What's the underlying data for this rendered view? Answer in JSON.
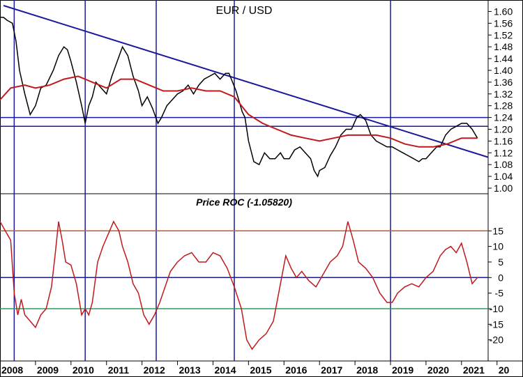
{
  "chart_data": [
    {
      "type": "line",
      "title": "EUR / USD",
      "x_axis_labels": [
        "2008",
        "2009",
        "2010",
        "2011",
        "2012",
        "2013",
        "2014",
        "2015",
        "2016",
        "2017",
        "2018",
        "2019",
        "2020",
        "2021",
        "20"
      ],
      "y_tick_labels": [
        "1.60",
        "1.56",
        "1.52",
        "1.48",
        "1.44",
        "1.40",
        "1.36",
        "1.32",
        "1.28",
        "1.24",
        "1.20",
        "1.16",
        "1.12",
        "1.08",
        "1.04",
        "1.00"
      ],
      "ylim": [
        1.0,
        1.62
      ],
      "xlim": [
        2008.0,
        2021.75
      ],
      "price_line_color": "#000000",
      "moving_average_color": "#c0191c",
      "trendline_color": "#1a1a9a",
      "grid_line_color": "#1a1a9a",
      "vertical_markers": [
        2008.4,
        2010.4,
        2012.4,
        2014.6,
        2019.0
      ],
      "horizontal_levels": [
        1.24,
        1.21
      ],
      "trendline": {
        "x": [
          2008.1,
          2021.75
        ],
        "y": [
          1.62,
          1.105
        ]
      },
      "series": [
        {
          "kind": "price",
          "x": [
            2008.0,
            2008.1,
            2008.2,
            2008.35,
            2008.45,
            2008.55,
            2008.7,
            2008.85,
            2009.0,
            2009.15,
            2009.3,
            2009.5,
            2009.65,
            2009.8,
            2009.9,
            2010.0,
            2010.15,
            2010.3,
            2010.4,
            2010.5,
            2010.6,
            2010.7,
            2010.85,
            2011.0,
            2011.15,
            2011.3,
            2011.45,
            2011.6,
            2011.75,
            2011.9,
            2012.0,
            2012.15,
            2012.3,
            2012.45,
            2012.55,
            2012.7,
            2012.85,
            2013.0,
            2013.15,
            2013.3,
            2013.45,
            2013.6,
            2013.75,
            2013.9,
            2014.05,
            2014.2,
            2014.35,
            2014.45,
            2014.55,
            2014.65,
            2014.75,
            2014.82,
            2014.9,
            2015.0,
            2015.15,
            2015.3,
            2015.45,
            2015.6,
            2015.75,
            2015.9,
            2016.0,
            2016.15,
            2016.3,
            2016.45,
            2016.6,
            2016.75,
            2016.85,
            2016.95,
            2017.0,
            2017.15,
            2017.3,
            2017.45,
            2017.6,
            2017.75,
            2017.9,
            2018.05,
            2018.15,
            2018.3,
            2018.45,
            2018.6,
            2018.75,
            2018.9,
            2019.05,
            2019.2,
            2019.35,
            2019.5,
            2019.65,
            2019.8,
            2019.9,
            2020.0,
            2020.15,
            2020.3,
            2020.4,
            2020.55,
            2020.7,
            2020.85,
            2021.0,
            2021.15,
            2021.3,
            2021.45
          ],
          "y": [
            1.58,
            1.58,
            1.57,
            1.56,
            1.5,
            1.4,
            1.32,
            1.25,
            1.28,
            1.34,
            1.35,
            1.4,
            1.45,
            1.48,
            1.47,
            1.43,
            1.36,
            1.28,
            1.22,
            1.28,
            1.31,
            1.36,
            1.34,
            1.32,
            1.38,
            1.43,
            1.48,
            1.45,
            1.38,
            1.33,
            1.28,
            1.31,
            1.27,
            1.22,
            1.24,
            1.28,
            1.3,
            1.32,
            1.33,
            1.35,
            1.32,
            1.35,
            1.37,
            1.38,
            1.39,
            1.37,
            1.39,
            1.39,
            1.36,
            1.33,
            1.29,
            1.26,
            1.24,
            1.16,
            1.09,
            1.08,
            1.12,
            1.1,
            1.1,
            1.12,
            1.1,
            1.1,
            1.13,
            1.14,
            1.12,
            1.1,
            1.06,
            1.04,
            1.06,
            1.07,
            1.11,
            1.14,
            1.18,
            1.2,
            1.2,
            1.24,
            1.25,
            1.23,
            1.18,
            1.16,
            1.15,
            1.14,
            1.14,
            1.13,
            1.12,
            1.11,
            1.1,
            1.09,
            1.1,
            1.1,
            1.12,
            1.14,
            1.14,
            1.18,
            1.2,
            1.21,
            1.22,
            1.22,
            1.2,
            1.17
          ]
        },
        {
          "kind": "moving-average",
          "x": [
            2008.0,
            2008.3,
            2008.7,
            2009.0,
            2009.4,
            2009.8,
            2010.2,
            2010.6,
            2011.0,
            2011.4,
            2011.8,
            2012.2,
            2012.6,
            2013.0,
            2013.4,
            2013.8,
            2014.2,
            2014.6,
            2015.0,
            2015.4,
            2015.8,
            2016.2,
            2016.6,
            2017.0,
            2017.4,
            2017.8,
            2018.2,
            2018.6,
            2019.0,
            2019.4,
            2019.8,
            2020.2,
            2020.6,
            2021.0,
            2021.45
          ],
          "y": [
            1.3,
            1.34,
            1.35,
            1.34,
            1.35,
            1.37,
            1.38,
            1.36,
            1.34,
            1.37,
            1.37,
            1.35,
            1.33,
            1.33,
            1.34,
            1.33,
            1.33,
            1.31,
            1.25,
            1.22,
            1.2,
            1.18,
            1.17,
            1.16,
            1.17,
            1.18,
            1.18,
            1.18,
            1.17,
            1.15,
            1.14,
            1.14,
            1.15,
            1.17,
            1.17
          ]
        }
      ]
    },
    {
      "type": "line",
      "title": "Price ROC (-1.05820)",
      "x_axis_labels": [
        "2008",
        "2009",
        "2010",
        "2011",
        "2012",
        "2013",
        "2014",
        "2015",
        "2016",
        "2017",
        "2018",
        "2019",
        "2020",
        "2021",
        "20"
      ],
      "y_tick_labels": [
        "15",
        "10",
        "5",
        "0",
        "-5",
        "-10",
        "-15",
        "-20"
      ],
      "ylim": [
        -25,
        22
      ],
      "xlim": [
        2008.0,
        2021.75
      ],
      "roc_line_color": "#c0191c",
      "upper_level": {
        "value": 15,
        "color": "#c05a2a"
      },
      "zero_level": {
        "value": 0,
        "color": "#1a1a9a"
      },
      "lower_level": {
        "value": -10,
        "color": "#2f9a5f"
      },
      "series": [
        {
          "x": [
            2008.0,
            2008.15,
            2008.3,
            2008.4,
            2008.5,
            2008.6,
            2008.7,
            2008.85,
            2009.0,
            2009.15,
            2009.3,
            2009.45,
            2009.55,
            2009.65,
            2009.75,
            2009.85,
            2010.0,
            2010.15,
            2010.3,
            2010.4,
            2010.5,
            2010.6,
            2010.75,
            2010.9,
            2011.05,
            2011.2,
            2011.35,
            2011.45,
            2011.6,
            2011.75,
            2011.9,
            2012.05,
            2012.2,
            2012.35,
            2012.5,
            2012.65,
            2012.8,
            2013.0,
            2013.2,
            2013.4,
            2013.6,
            2013.8,
            2014.0,
            2014.2,
            2014.4,
            2014.6,
            2014.8,
            2014.95,
            2015.1,
            2015.3,
            2015.5,
            2015.7,
            2015.9,
            2016.05,
            2016.2,
            2016.35,
            2016.5,
            2016.7,
            2016.9,
            2017.1,
            2017.3,
            2017.5,
            2017.65,
            2017.8,
            2017.95,
            2018.1,
            2018.3,
            2018.5,
            2018.7,
            2018.9,
            2019.05,
            2019.2,
            2019.4,
            2019.6,
            2019.8,
            2020.0,
            2020.2,
            2020.4,
            2020.55,
            2020.7,
            2020.85,
            2021.0,
            2021.15,
            2021.3,
            2021.45
          ],
          "y": [
            18,
            15,
            12,
            -5,
            -12,
            -7,
            -12,
            -14,
            -16,
            -12,
            -10,
            -3,
            7,
            18,
            12,
            5,
            4,
            -2,
            -12,
            -10,
            -12,
            -8,
            5,
            10,
            14,
            18,
            15,
            10,
            5,
            -2,
            -5,
            -12,
            -15,
            -12,
            -8,
            -3,
            2,
            5,
            7,
            8,
            5,
            5,
            8,
            7,
            3,
            -3,
            -10,
            -20,
            -23,
            -20,
            -18,
            -14,
            -2,
            7,
            3,
            0,
            2,
            -1,
            -3,
            1,
            5,
            7,
            10,
            18,
            12,
            5,
            3,
            0,
            -5,
            -8,
            -8,
            -5,
            -3,
            -2,
            -3,
            0,
            2,
            7,
            9,
            10,
            8,
            11,
            5,
            -2,
            0
          ]
        }
      ]
    }
  ]
}
